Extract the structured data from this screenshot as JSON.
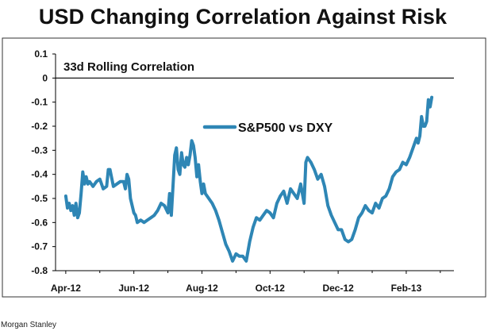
{
  "source": "Morgan Stanley",
  "colors": {
    "series": "#2E86B5",
    "axis": "#000000",
    "text": "#111111"
  },
  "chart_data": {
    "type": "line",
    "title": "USD Changing Correlation Against Risk",
    "subtitle": "33d Rolling Correlation",
    "xlabel": "",
    "ylabel": "",
    "ylim": [
      -0.8,
      0.1
    ],
    "yticks": [
      0.1,
      0,
      -0.1,
      -0.2,
      -0.3,
      -0.4,
      -0.5,
      -0.6,
      -0.7,
      -0.8
    ],
    "ytick_labels": [
      "0.1",
      "0",
      "-0.1",
      "-0.2",
      "-0.3",
      "-0.4",
      "-0.5",
      "-0.6",
      "-0.7",
      "-0.8"
    ],
    "xticks": [
      0,
      2,
      4,
      6,
      8,
      10
    ],
    "xtick_labels": [
      "Apr-12",
      "Jun-12",
      "Aug-12",
      "Oct-12",
      "Dec-12",
      "Feb-13"
    ],
    "xlim": [
      -0.3,
      11.4
    ],
    "grid": false,
    "legend_position": "center",
    "series": [
      {
        "name": "S&P500 vs DXY",
        "x": [
          0.0,
          0.05,
          0.1,
          0.15,
          0.2,
          0.25,
          0.3,
          0.35,
          0.4,
          0.45,
          0.5,
          0.55,
          0.6,
          0.65,
          0.7,
          0.75,
          0.8,
          0.9,
          1.0,
          1.1,
          1.2,
          1.25,
          1.3,
          1.4,
          1.5,
          1.6,
          1.7,
          1.75,
          1.8,
          1.85,
          1.9,
          2.0,
          2.05,
          2.1,
          2.2,
          2.3,
          2.4,
          2.5,
          2.6,
          2.7,
          2.8,
          2.9,
          3.0,
          3.05,
          3.1,
          3.15,
          3.2,
          3.25,
          3.3,
          3.35,
          3.4,
          3.45,
          3.5,
          3.55,
          3.6,
          3.65,
          3.7,
          3.75,
          3.8,
          3.85,
          3.9,
          3.95,
          4.0,
          4.05,
          4.1,
          4.2,
          4.3,
          4.4,
          4.5,
          4.6,
          4.7,
          4.8,
          4.9,
          5.0,
          5.1,
          5.2,
          5.3,
          5.4,
          5.5,
          5.6,
          5.7,
          5.8,
          5.9,
          6.0,
          6.1,
          6.2,
          6.3,
          6.4,
          6.5,
          6.6,
          6.7,
          6.8,
          6.9,
          7.0,
          7.05,
          7.1,
          7.2,
          7.3,
          7.4,
          7.5,
          7.6,
          7.7,
          7.8,
          7.9,
          8.0,
          8.1,
          8.2,
          8.3,
          8.4,
          8.5,
          8.6,
          8.7,
          8.8,
          8.9,
          9.0,
          9.1,
          9.2,
          9.3,
          9.4,
          9.5,
          9.6,
          9.7,
          9.8,
          9.9,
          10.0,
          10.1,
          10.2,
          10.3,
          10.35,
          10.4,
          10.45,
          10.5,
          10.55,
          10.6,
          10.65,
          10.7,
          10.75
        ],
        "values": [
          -0.49,
          -0.54,
          -0.52,
          -0.55,
          -0.53,
          -0.57,
          -0.52,
          -0.58,
          -0.56,
          -0.48,
          -0.39,
          -0.44,
          -0.41,
          -0.44,
          -0.43,
          -0.44,
          -0.45,
          -0.43,
          -0.42,
          -0.46,
          -0.45,
          -0.38,
          -0.38,
          -0.45,
          -0.44,
          -0.43,
          -0.43,
          -0.46,
          -0.4,
          -0.42,
          -0.5,
          -0.56,
          -0.57,
          -0.6,
          -0.59,
          -0.6,
          -0.59,
          -0.58,
          -0.57,
          -0.55,
          -0.52,
          -0.53,
          -0.56,
          -0.48,
          -0.57,
          -0.45,
          -0.32,
          -0.29,
          -0.38,
          -0.4,
          -0.31,
          -0.36,
          -0.37,
          -0.33,
          -0.36,
          -0.32,
          -0.26,
          -0.28,
          -0.33,
          -0.41,
          -0.36,
          -0.43,
          -0.48,
          -0.44,
          -0.48,
          -0.5,
          -0.52,
          -0.55,
          -0.59,
          -0.64,
          -0.69,
          -0.72,
          -0.76,
          -0.73,
          -0.74,
          -0.74,
          -0.76,
          -0.68,
          -0.62,
          -0.58,
          -0.59,
          -0.57,
          -0.55,
          -0.56,
          -0.58,
          -0.52,
          -0.49,
          -0.47,
          -0.52,
          -0.46,
          -0.48,
          -0.5,
          -0.44,
          -0.52,
          -0.35,
          -0.33,
          -0.35,
          -0.38,
          -0.42,
          -0.4,
          -0.45,
          -0.53,
          -0.57,
          -0.6,
          -0.63,
          -0.63,
          -0.67,
          -0.68,
          -0.67,
          -0.63,
          -0.58,
          -0.56,
          -0.53,
          -0.55,
          -0.56,
          -0.52,
          -0.54,
          -0.5,
          -0.49,
          -0.46,
          -0.41,
          -0.39,
          -0.38,
          -0.35,
          -0.36,
          -0.33,
          -0.29,
          -0.25,
          -0.27,
          -0.24,
          -0.16,
          -0.2,
          -0.2,
          -0.18,
          -0.09,
          -0.12,
          -0.08
        ]
      }
    ]
  }
}
